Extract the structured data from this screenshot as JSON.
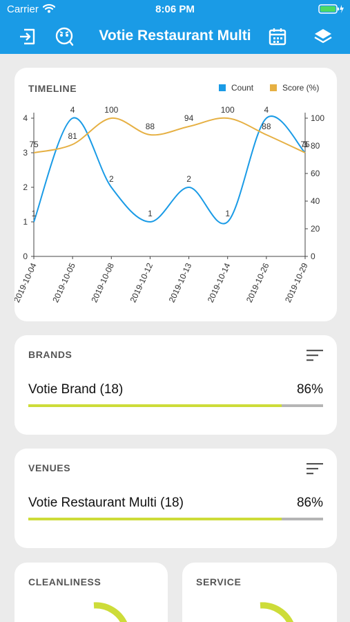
{
  "status_bar": {
    "carrier": "Carrier",
    "time": "8:06 PM"
  },
  "nav": {
    "title": "Votie Restaurant Multi"
  },
  "colors": {
    "header": "#1a9be6",
    "count_series": "#1a9be6",
    "score_series": "#e6b043",
    "progress": "#cddc39"
  },
  "timeline": {
    "title": "TIMELINE",
    "legend": [
      {
        "label": "Count",
        "color": "#1a9be6"
      },
      {
        "label": "Score (%)",
        "color": "#e6b043"
      }
    ]
  },
  "chart_data": {
    "type": "line",
    "categories": [
      "2019-10-04",
      "2019-10-05",
      "2019-10-08",
      "2019-10-12",
      "2019-10-13",
      "2019-10-14",
      "2019-10-26",
      "2019-10-29"
    ],
    "series": [
      {
        "name": "Count",
        "axis": "left",
        "values": [
          1,
          4,
          2,
          1,
          2,
          1,
          4,
          3
        ],
        "labels": [
          "1",
          "4",
          "2",
          "1",
          "2",
          "1",
          "4",
          "3"
        ]
      },
      {
        "name": "Score (%)",
        "axis": "right",
        "values": [
          75,
          81,
          100,
          88,
          94,
          100,
          88,
          75
        ],
        "labels": [
          "75",
          "81",
          "100",
          "88",
          "94",
          "100",
          "88",
          "75"
        ]
      }
    ],
    "y_left": {
      "range": [
        0,
        4
      ],
      "ticks": [
        "0",
        "1",
        "2",
        "3",
        "4"
      ]
    },
    "y_right": {
      "range": [
        0,
        100
      ],
      "ticks": [
        "0",
        "20",
        "40",
        "60",
        "80",
        "100"
      ]
    },
    "grid": false,
    "legend_position": "top-right"
  },
  "brands": {
    "title": "BRANDS",
    "item": {
      "label": "Votie Brand (18)",
      "percent": "86%",
      "value": 0.86
    }
  },
  "venues": {
    "title": "VENUES",
    "item": {
      "label": "Votie Restaurant Multi (18)",
      "percent": "86%",
      "value": 0.86
    }
  },
  "cleanliness": {
    "title": "CLEANLINESS"
  },
  "service": {
    "title": "SERVICE"
  }
}
